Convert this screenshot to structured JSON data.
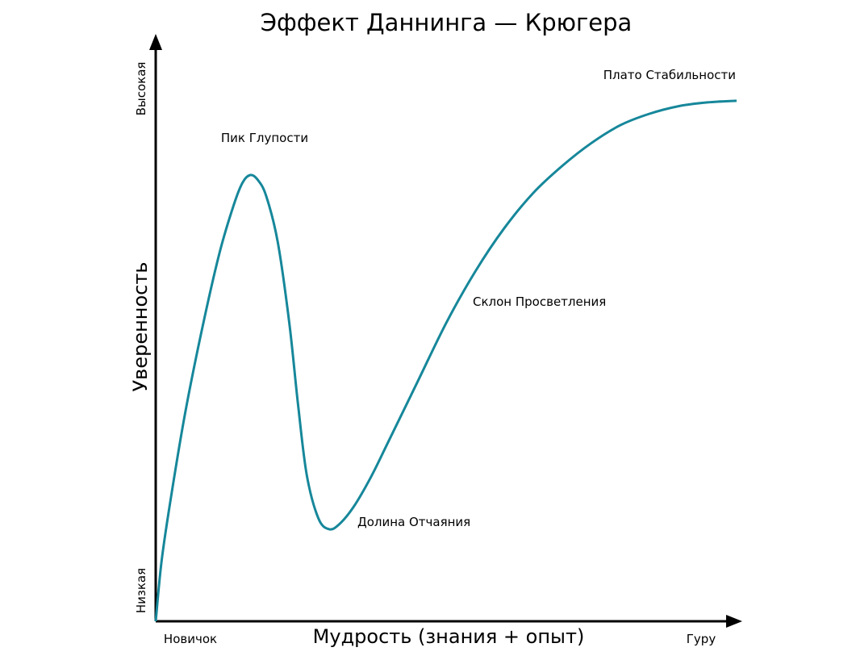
{
  "chart_data": {
    "type": "line",
    "title": "Эффект Даннинга — Крюгера",
    "xlabel": "Мудрость (знания + опыт)",
    "ylabel": "Уверенность",
    "x_start_label": "Новичок",
    "x_end_label": "Гуру",
    "y_low_label": "Низкая",
    "y_high_label": "Высокая",
    "xlim": [
      0,
      100
    ],
    "ylim": [
      0,
      100
    ],
    "grid": false,
    "series": [
      {
        "color": "#16879a",
        "points": [
          [
            0,
            0
          ],
          [
            1,
            11
          ],
          [
            2.5,
            22
          ],
          [
            5,
            38
          ],
          [
            8,
            54
          ],
          [
            11,
            68
          ],
          [
            13.5,
            77
          ],
          [
            15,
            81
          ],
          [
            16.3,
            82.3
          ],
          [
            17.5,
            81.5
          ],
          [
            19,
            78.5
          ],
          [
            21,
            70
          ],
          [
            23,
            55
          ],
          [
            24.5,
            40
          ],
          [
            26,
            27
          ],
          [
            28,
            19
          ],
          [
            29.8,
            17
          ],
          [
            31.5,
            17.8
          ],
          [
            34,
            21
          ],
          [
            37,
            26.5
          ],
          [
            40,
            33
          ],
          [
            45,
            44
          ],
          [
            50,
            55
          ],
          [
            55,
            64.5
          ],
          [
            60,
            72.5
          ],
          [
            65,
            79
          ],
          [
            70,
            84
          ],
          [
            75,
            88.2
          ],
          [
            80,
            91.5
          ],
          [
            85,
            93.6
          ],
          [
            90,
            95
          ],
          [
            95,
            95.7
          ],
          [
            100,
            96
          ]
        ]
      }
    ],
    "annotations": [
      {
        "id": "peak",
        "text": "Пик Глупости",
        "x": 16.3,
        "y": 82.3
      },
      {
        "id": "valley",
        "text": "Долина Отчаяния",
        "x": 29.8,
        "y": 17
      },
      {
        "id": "slope",
        "text": "Склон Просветления",
        "x": 54,
        "y": 62
      },
      {
        "id": "plateau",
        "text": "Плато Стабильности",
        "x": 100,
        "y": 96
      }
    ]
  }
}
